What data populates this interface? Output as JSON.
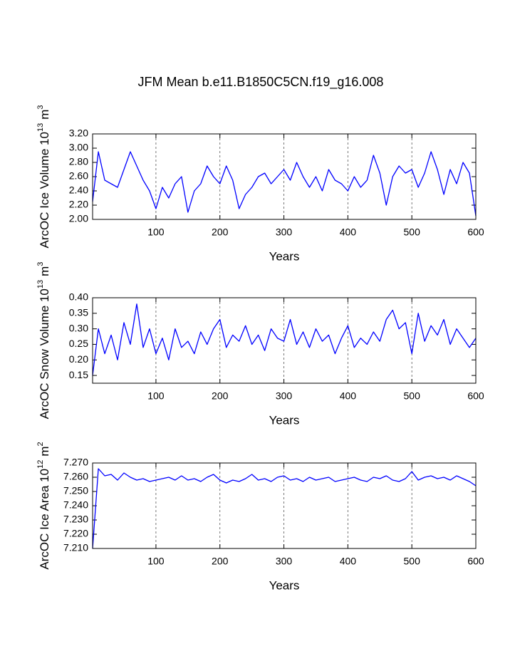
{
  "title": "JFM Mean b.e11.B1850C5CN.f19_g16.008",
  "chart_data": [
    {
      "type": "line",
      "y_label": "ArcOC Ice Volume 10",
      "y_label_exponent": "13",
      "y_label_unit": "m",
      "y_label_unit_exponent": "3",
      "x_label": "Years",
      "x": [
        1,
        10,
        20,
        30,
        40,
        50,
        60,
        70,
        80,
        90,
        100,
        110,
        120,
        130,
        140,
        150,
        160,
        170,
        180,
        190,
        200,
        210,
        220,
        230,
        240,
        250,
        260,
        270,
        280,
        290,
        300,
        310,
        320,
        330,
        340,
        350,
        360,
        370,
        380,
        390,
        400,
        410,
        420,
        430,
        440,
        450,
        460,
        470,
        480,
        490,
        500,
        510,
        520,
        530,
        540,
        550,
        560,
        570,
        580,
        590,
        600
      ],
      "series": [
        {
          "color": "#0000ff",
          "values": [
            2.25,
            2.95,
            2.55,
            2.5,
            2.45,
            2.7,
            2.95,
            2.75,
            2.55,
            2.4,
            2.15,
            2.45,
            2.3,
            2.5,
            2.6,
            2.1,
            2.4,
            2.5,
            2.75,
            2.6,
            2.5,
            2.75,
            2.55,
            2.15,
            2.35,
            2.45,
            2.6,
            2.65,
            2.5,
            2.6,
            2.7,
            2.55,
            2.8,
            2.6,
            2.45,
            2.6,
            2.4,
            2.7,
            2.55,
            2.5,
            2.4,
            2.6,
            2.45,
            2.55,
            2.9,
            2.65,
            2.2,
            2.6,
            2.75,
            2.65,
            2.7,
            2.45,
            2.65,
            2.95,
            2.7,
            2.35,
            2.7,
            2.5,
            2.8,
            2.65,
            2.05
          ]
        }
      ],
      "xlim": [
        1,
        600
      ],
      "xticks": [
        100,
        200,
        300,
        400,
        500,
        600
      ],
      "grid": "x",
      "ylim": [
        2.0,
        3.2
      ],
      "yticks": [
        {
          "value": 2.0,
          "label": "2.00"
        },
        {
          "value": 2.2,
          "label": "2.20"
        },
        {
          "value": 2.4,
          "label": "2.40"
        },
        {
          "value": 2.6,
          "label": "2.60"
        },
        {
          "value": 2.8,
          "label": "2.80"
        },
        {
          "value": 3.0,
          "label": "3.00"
        },
        {
          "value": 3.2,
          "label": "3.20"
        }
      ]
    },
    {
      "type": "line",
      "y_label": "ArcOC Snow Volume 10",
      "y_label_exponent": "13",
      "y_label_unit": "m",
      "y_label_unit_exponent": "3",
      "x_label": "Years",
      "x": [
        1,
        10,
        20,
        30,
        40,
        50,
        60,
        70,
        80,
        90,
        100,
        110,
        120,
        130,
        140,
        150,
        160,
        170,
        180,
        190,
        200,
        210,
        220,
        230,
        240,
        250,
        260,
        270,
        280,
        290,
        300,
        310,
        320,
        330,
        340,
        350,
        360,
        370,
        380,
        390,
        400,
        410,
        420,
        430,
        440,
        450,
        460,
        470,
        480,
        490,
        500,
        510,
        520,
        530,
        540,
        550,
        560,
        570,
        580,
        590,
        600
      ],
      "series": [
        {
          "color": "#0000ff",
          "values": [
            0.15,
            0.3,
            0.22,
            0.28,
            0.2,
            0.32,
            0.25,
            0.38,
            0.24,
            0.3,
            0.22,
            0.27,
            0.2,
            0.3,
            0.24,
            0.26,
            0.22,
            0.29,
            0.25,
            0.3,
            0.33,
            0.24,
            0.28,
            0.26,
            0.31,
            0.25,
            0.28,
            0.23,
            0.3,
            0.27,
            0.26,
            0.33,
            0.25,
            0.29,
            0.24,
            0.3,
            0.26,
            0.28,
            0.22,
            0.27,
            0.31,
            0.24,
            0.27,
            0.25,
            0.29,
            0.26,
            0.33,
            0.36,
            0.3,
            0.32,
            0.22,
            0.35,
            0.26,
            0.31,
            0.28,
            0.33,
            0.25,
            0.3,
            0.27,
            0.24,
            0.27
          ]
        }
      ],
      "xlim": [
        1,
        600
      ],
      "xticks": [
        100,
        200,
        300,
        400,
        500,
        600
      ],
      "grid": "x",
      "ylim": [
        0.125,
        0.4
      ],
      "yticks": [
        0.15,
        {
          "value": 0.2,
          "label": "0.20"
        },
        0.25,
        {
          "value": 0.3,
          "label": "0.30"
        },
        0.35,
        {
          "value": 0.4,
          "label": "0.40"
        }
      ]
    },
    {
      "type": "line",
      "y_label": "ArcOC Ice Area 10",
      "y_label_exponent": "12",
      "y_label_unit": "m",
      "y_label_unit_exponent": "2",
      "x_label": "Years",
      "x": [
        1,
        10,
        20,
        30,
        40,
        50,
        60,
        70,
        80,
        90,
        100,
        110,
        120,
        130,
        140,
        150,
        160,
        170,
        180,
        190,
        200,
        210,
        220,
        230,
        240,
        250,
        260,
        270,
        280,
        290,
        300,
        310,
        320,
        330,
        340,
        350,
        360,
        370,
        380,
        390,
        400,
        410,
        420,
        430,
        440,
        450,
        460,
        470,
        480,
        490,
        500,
        510,
        520,
        530,
        540,
        550,
        560,
        570,
        580,
        590,
        600
      ],
      "series": [
        {
          "color": "#0000ff",
          "values": [
            7.21,
            7.266,
            7.261,
            7.262,
            7.258,
            7.263,
            7.26,
            7.258,
            7.259,
            7.257,
            7.258,
            7.259,
            7.26,
            7.258,
            7.261,
            7.258,
            7.259,
            7.257,
            7.26,
            7.262,
            7.258,
            7.256,
            7.258,
            7.257,
            7.259,
            7.262,
            7.258,
            7.259,
            7.257,
            7.26,
            7.261,
            7.258,
            7.259,
            7.257,
            7.26,
            7.258,
            7.259,
            7.26,
            7.257,
            7.258,
            7.259,
            7.26,
            7.258,
            7.257,
            7.26,
            7.259,
            7.261,
            7.258,
            7.257,
            7.259,
            7.264,
            7.258,
            7.26,
            7.261,
            7.259,
            7.26,
            7.258,
            7.261,
            7.259,
            7.257,
            7.254
          ]
        }
      ],
      "xlim": [
        1,
        600
      ],
      "xticks": [
        100,
        200,
        300,
        400,
        500,
        600
      ],
      "grid": "x",
      "ylim": [
        7.21,
        7.27
      ],
      "yticks": [
        {
          "value": 7.21,
          "label": "7.210"
        },
        {
          "value": 7.22,
          "label": "7.220"
        },
        {
          "value": 7.23,
          "label": "7.230"
        },
        {
          "value": 7.24,
          "label": "7.240"
        },
        {
          "value": 7.25,
          "label": "7.250"
        },
        {
          "value": 7.26,
          "label": "7.260"
        },
        {
          "value": 7.27,
          "label": "7.270"
        }
      ]
    }
  ]
}
